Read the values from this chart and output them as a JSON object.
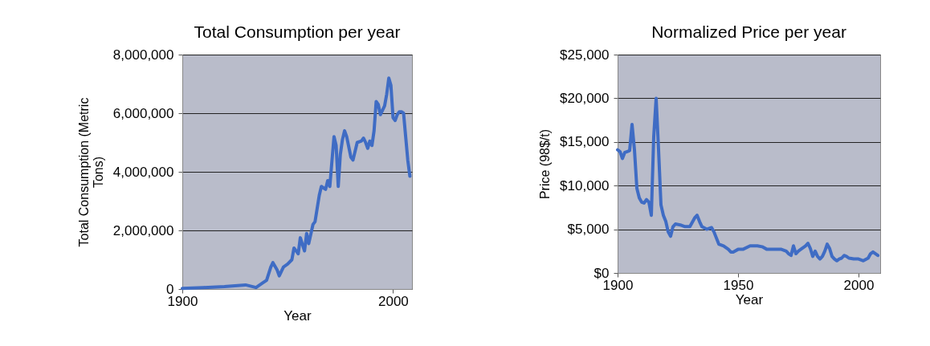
{
  "chart_data": [
    {
      "type": "line",
      "title": "Total Consumption per year",
      "xlabel": "Year",
      "ylabel": "Total Consumption (Metric Tons)",
      "x": [
        1900,
        1910,
        1920,
        1930,
        1935,
        1938,
        1940,
        1942,
        1943,
        1945,
        1946,
        1948,
        1950,
        1952,
        1953,
        1955,
        1956,
        1958,
        1959,
        1960,
        1962,
        1963,
        1965,
        1966,
        1968,
        1969,
        1970,
        1972,
        1973,
        1974,
        1975,
        1976,
        1977,
        1978,
        1980,
        1981,
        1983,
        1985,
        1986,
        1987,
        1988,
        1989,
        1990,
        1991,
        1992,
        1993,
        1994,
        1996,
        1997,
        1998,
        1999,
        2000,
        2001,
        2002,
        2003,
        2004,
        2005,
        2006,
        2007,
        2008
      ],
      "series": [
        {
          "color": "#3f6cc4",
          "values": [
            20000,
            50000,
            80000,
            140000,
            50000,
            200000,
            300000,
            750000,
            900000,
            650000,
            450000,
            750000,
            850000,
            1000000,
            1400000,
            1200000,
            1750000,
            1300000,
            1900000,
            1550000,
            2200000,
            2300000,
            3200000,
            3500000,
            3400000,
            3700000,
            3500000,
            5200000,
            4900000,
            3500000,
            4600000,
            5100000,
            5400000,
            5200000,
            4500000,
            4400000,
            5000000,
            5050000,
            5150000,
            5000000,
            4800000,
            5050000,
            4900000,
            5400000,
            6400000,
            6300000,
            5950000,
            6250000,
            6650000,
            7200000,
            6950000,
            5850000,
            5750000,
            5950000,
            6050000,
            6050000,
            6000000,
            5200000,
            4400000,
            3850000
          ]
        }
      ],
      "xlim": [
        1900,
        2009
      ],
      "xticks": [
        1900,
        2000
      ],
      "ylim": [
        0,
        8000000
      ],
      "yticks": [
        {
          "value": 0,
          "label": "0"
        },
        {
          "value": 2000000,
          "label": "2,000,000"
        },
        {
          "value": 4000000,
          "label": "4,000,000"
        },
        {
          "value": 6000000,
          "label": "6,000,000"
        },
        {
          "value": 8000000,
          "label": "8,000,000"
        }
      ],
      "grid": "y",
      "line_style": "solid"
    },
    {
      "type": "line",
      "title": "Normalized Price per year",
      "xlabel": "Year",
      "ylabel": "Price (98$/t)",
      "x": [
        1900,
        1901,
        1902,
        1903,
        1904,
        1905,
        1906,
        1907,
        1908,
        1909,
        1910,
        1911,
        1912,
        1913,
        1914,
        1915,
        1916,
        1917,
        1918,
        1919,
        1920,
        1921,
        1922,
        1923,
        1924,
        1926,
        1928,
        1930,
        1932,
        1933,
        1934,
        1935,
        1937,
        1939,
        1940,
        1942,
        1944,
        1946,
        1947,
        1948,
        1950,
        1952,
        1955,
        1958,
        1960,
        1962,
        1965,
        1968,
        1970,
        1971,
        1972,
        1973,
        1974,
        1975,
        1976,
        1978,
        1979,
        1980,
        1981,
        1982,
        1983,
        1984,
        1985,
        1986,
        1987,
        1988,
        1989,
        1990,
        1991,
        1992,
        1993,
        1994,
        1995,
        1996,
        1998,
        2000,
        2002,
        2004,
        2005,
        2006,
        2008
      ],
      "series": [
        {
          "color": "#3f6cc4",
          "values": [
            14100,
            13900,
            13100,
            13800,
            13900,
            14000,
            17000,
            14100,
            9700,
            8600,
            8100,
            8000,
            8400,
            8100,
            6600,
            15600,
            20000,
            14100,
            7800,
            6600,
            5900,
            4700,
            4200,
            5300,
            5600,
            5500,
            5300,
            5300,
            6300,
            6600,
            5900,
            5300,
            5000,
            5200,
            4700,
            3300,
            3100,
            2700,
            2400,
            2400,
            2700,
            2700,
            3100,
            3100,
            3000,
            2700,
            2700,
            2700,
            2500,
            2200,
            2000,
            3100,
            2200,
            2500,
            2700,
            3100,
            3400,
            2800,
            1900,
            2500,
            1900,
            1600,
            1900,
            2500,
            3300,
            2800,
            1900,
            1600,
            1400,
            1600,
            1700,
            2000,
            1900,
            1700,
            1600,
            1600,
            1400,
            1700,
            2200,
            2400,
            2000
          ]
        }
      ],
      "xlim": [
        1900,
        2009
      ],
      "xticks": [
        1900,
        1950,
        2000
      ],
      "ylim": [
        0,
        25000
      ],
      "yticks": [
        {
          "value": 0,
          "label": "$0"
        },
        {
          "value": 5000,
          "label": "$5,000"
        },
        {
          "value": 10000,
          "label": "$10,000"
        },
        {
          "value": 15000,
          "label": "$15,000"
        },
        {
          "value": 20000,
          "label": "$20,000"
        },
        {
          "value": 25000,
          "label": "$25,000"
        }
      ],
      "grid": "y",
      "line_style": "solid"
    }
  ]
}
